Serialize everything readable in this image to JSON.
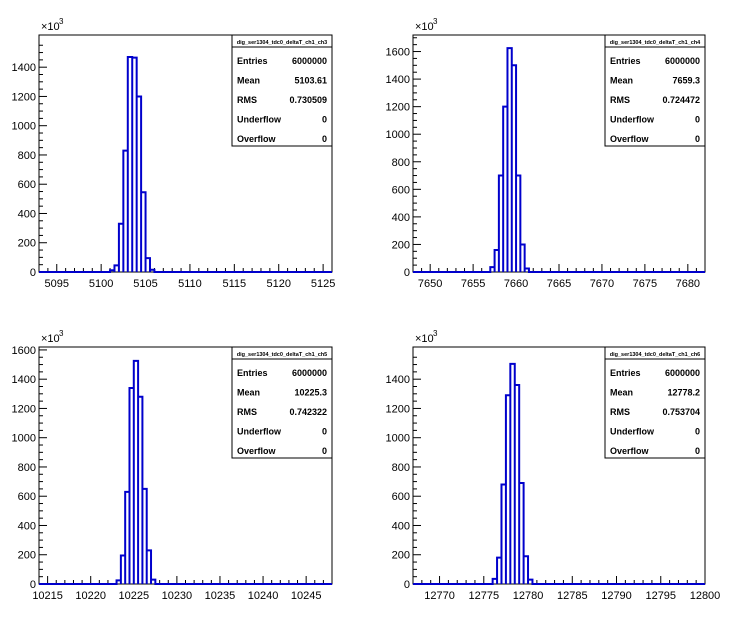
{
  "chart_data": [
    {
      "type": "histogram",
      "stats_title": "dig_ser1304_tdc0_deltaT_ch1_ch3",
      "y_multiplier_base": "×10",
      "y_multiplier_exp": "3",
      "xlim": [
        5093,
        5126
      ],
      "ylim": [
        0,
        1620
      ],
      "x_ticks": [
        5095,
        5100,
        5105,
        5110,
        5115,
        5120,
        5125
      ],
      "y_ticks": [
        0,
        200,
        400,
        600,
        800,
        1000,
        1200,
        1400
      ],
      "bin_width": 0.5,
      "bins": [
        [
          5101.0,
          12
        ],
        [
          5101.5,
          45
        ],
        [
          5102.0,
          330
        ],
        [
          5102.5,
          830
        ],
        [
          5103.0,
          1470
        ],
        [
          5103.5,
          1465
        ],
        [
          5104.0,
          1200
        ],
        [
          5104.5,
          545
        ],
        [
          5105.0,
          95
        ],
        [
          5105.5,
          15
        ]
      ],
      "stats": [
        {
          "label": "Entries",
          "value": "6000000"
        },
        {
          "label": "Mean",
          "value": "5103.61"
        },
        {
          "label": "RMS",
          "value": "0.730509"
        },
        {
          "label": "Underflow",
          "value": "0"
        },
        {
          "label": "Overflow",
          "value": "0"
        }
      ]
    },
    {
      "type": "histogram",
      "stats_title": "dig_ser1304_tdc0_deltaT_ch1_ch4",
      "y_multiplier_base": "×10",
      "y_multiplier_exp": "3",
      "xlim": [
        7648,
        7682
      ],
      "ylim": [
        0,
        1720
      ],
      "x_ticks": [
        7650,
        7655,
        7660,
        7665,
        7670,
        7675,
        7680
      ],
      "y_ticks": [
        0,
        200,
        400,
        600,
        800,
        1000,
        1200,
        1400,
        1600
      ],
      "bin_width": 0.5,
      "bins": [
        [
          7657.0,
          35
        ],
        [
          7657.5,
          160
        ],
        [
          7658.0,
          700
        ],
        [
          7658.5,
          1200
        ],
        [
          7659.0,
          1625
        ],
        [
          7659.5,
          1500
        ],
        [
          7660.0,
          700
        ],
        [
          7660.5,
          200
        ],
        [
          7661.0,
          25
        ]
      ],
      "stats": [
        {
          "label": "Entries",
          "value": "6000000"
        },
        {
          "label": "Mean",
          "value": "7659.3"
        },
        {
          "label": "RMS",
          "value": "0.724472"
        },
        {
          "label": "Underflow",
          "value": "0"
        },
        {
          "label": "Overflow",
          "value": "0"
        }
      ]
    },
    {
      "type": "histogram",
      "stats_title": "dig_ser1304_tdc0_deltaT_ch1_ch5",
      "y_multiplier_base": "×10",
      "y_multiplier_exp": "3",
      "xlim": [
        10214,
        10248
      ],
      "ylim": [
        0,
        1620
      ],
      "x_ticks": [
        10215,
        10220,
        10225,
        10230,
        10235,
        10240,
        10245
      ],
      "y_ticks": [
        0,
        200,
        400,
        600,
        800,
        1000,
        1200,
        1400,
        1600
      ],
      "bin_width": 0.5,
      "bins": [
        [
          10223.0,
          25
        ],
        [
          10223.5,
          195
        ],
        [
          10224.0,
          630
        ],
        [
          10224.5,
          1340
        ],
        [
          10225.0,
          1525
        ],
        [
          10225.5,
          1280
        ],
        [
          10226.0,
          650
        ],
        [
          10226.5,
          230
        ],
        [
          10227.0,
          30
        ]
      ],
      "stats": [
        {
          "label": "Entries",
          "value": "6000000"
        },
        {
          "label": "Mean",
          "value": "10225.3"
        },
        {
          "label": "RMS",
          "value": "0.742322"
        },
        {
          "label": "Underflow",
          "value": "0"
        },
        {
          "label": "Overflow",
          "value": "0"
        }
      ]
    },
    {
      "type": "histogram",
      "stats_title": "dig_ser1304_tdc0_deltaT_ch1_ch6",
      "y_multiplier_base": "×10",
      "y_multiplier_exp": "3",
      "xlim": [
        12767,
        12800
      ],
      "ylim": [
        0,
        1620
      ],
      "x_ticks": [
        12770,
        12775,
        12780,
        12785,
        12790,
        12795,
        12800
      ],
      "y_ticks": [
        0,
        200,
        400,
        600,
        800,
        1000,
        1200,
        1400
      ],
      "bin_width": 0.5,
      "bins": [
        [
          12776.0,
          35
        ],
        [
          12776.5,
          180
        ],
        [
          12777.0,
          680
        ],
        [
          12777.5,
          1290
        ],
        [
          12778.0,
          1505
        ],
        [
          12778.5,
          1360
        ],
        [
          12779.0,
          690
        ],
        [
          12779.5,
          190
        ],
        [
          12780.0,
          30
        ]
      ],
      "stats": [
        {
          "label": "Entries",
          "value": "6000000"
        },
        {
          "label": "Mean",
          "value": "12778.2"
        },
        {
          "label": "RMS",
          "value": "0.753704"
        },
        {
          "label": "Underflow",
          "value": "0"
        },
        {
          "label": "Overflow",
          "value": "0"
        }
      ]
    }
  ],
  "colors": {
    "histogram_line": "#0000cc",
    "axis": "#000000",
    "background": "#ffffff"
  }
}
